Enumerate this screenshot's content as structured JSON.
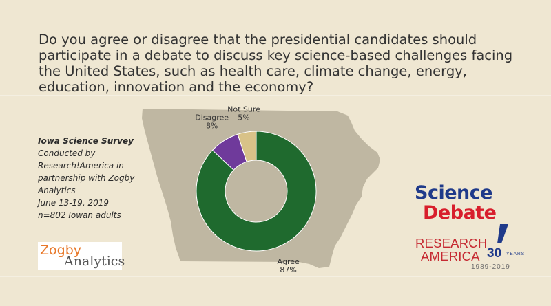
{
  "question": "Do you agree or disagree that the presidential candidates should participate in a debate to discuss key science-based challenges facing the United States, such as health care, climate change, energy, education, innovation and the economy?",
  "survey": {
    "title": "Iowa Science Survey",
    "lines": [
      "Conducted by",
      "Research!America in",
      "partnership with Zogby",
      "Analytics",
      "June 13-19, 2019",
      "n=802 Iowan adults"
    ]
  },
  "logos": {
    "zogby_line1": "Zogby",
    "zogby_line2": "Analytics",
    "science_debate_line1": "Science",
    "science_debate_line2": "Debate",
    "research_line1": "RESEARCH",
    "research_line2": "AMERICA",
    "thirty": "30",
    "years": "YEARS",
    "span": "1989-2019"
  },
  "chart_data": {
    "type": "pie",
    "donut": true,
    "categories": [
      "Agree",
      "Disagree",
      "Not Sure"
    ],
    "values": [
      87,
      8,
      5
    ],
    "value_labels": [
      "87%",
      "8%",
      "5%"
    ],
    "colors": [
      "#1f6a2e",
      "#6f3a9b",
      "#d8c288"
    ]
  },
  "colors": {
    "background": "#efe7d2",
    "map": "#bfb7a2"
  }
}
